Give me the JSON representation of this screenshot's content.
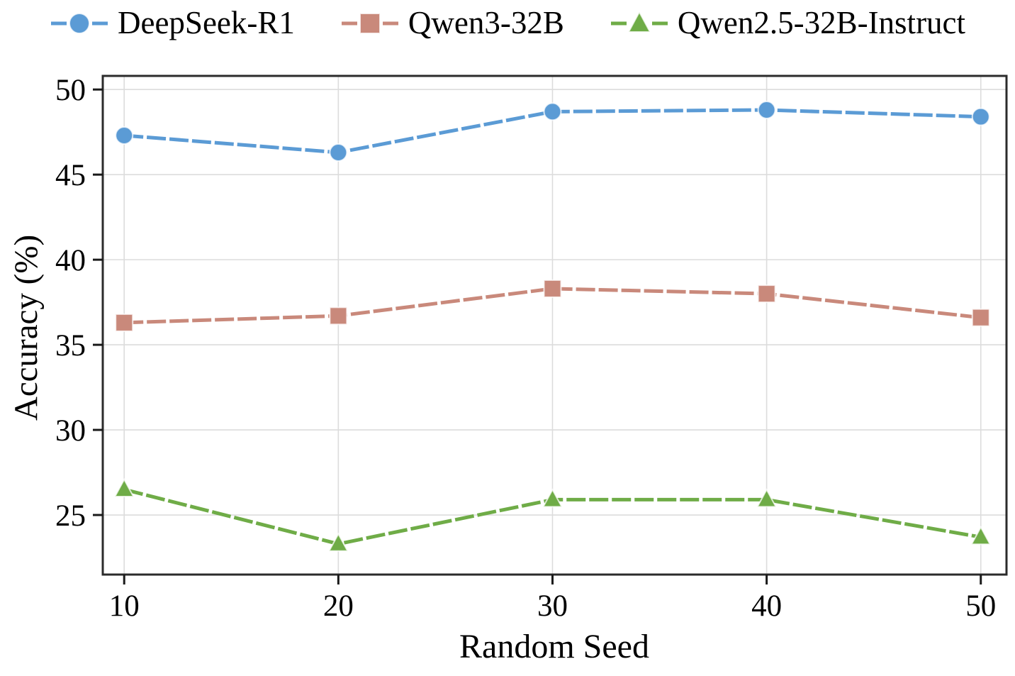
{
  "figure": {
    "background": "#ffffff",
    "frame_color": "#2b2b2b",
    "grid_color": "#dcdcdc",
    "tick_color": "#1a1a1a",
    "text_color": "#000000"
  },
  "chart_data": {
    "type": "line",
    "title": "",
    "xlabel": "Random Seed",
    "ylabel": "Accuracy (%)",
    "x": [
      10,
      20,
      30,
      40,
      50
    ],
    "xtick_labels": [
      "10",
      "20",
      "30",
      "40",
      "50"
    ],
    "yticks": [
      25,
      30,
      35,
      40,
      45,
      50
    ],
    "ytick_labels": [
      "25",
      "30",
      "35",
      "40",
      "45",
      "50"
    ],
    "xlim": [
      9.0,
      51.2
    ],
    "ylim": [
      21.5,
      50.8
    ],
    "grid": true,
    "line_style": "dashed",
    "legend_position": "top",
    "series": [
      {
        "name": "DeepSeek-R1",
        "color": "#5B9BD5",
        "marker": "circle",
        "values": [
          47.3,
          46.3,
          48.7,
          48.8,
          48.4
        ]
      },
      {
        "name": "Qwen3-32B",
        "color": "#C9897B",
        "marker": "square",
        "values": [
          36.3,
          36.7,
          38.3,
          38.0,
          36.6
        ]
      },
      {
        "name": "Qwen2.5-32B-Instruct",
        "color": "#6FAC47",
        "marker": "triangle",
        "values": [
          26.5,
          23.3,
          25.9,
          25.9,
          23.7
        ]
      }
    ]
  }
}
